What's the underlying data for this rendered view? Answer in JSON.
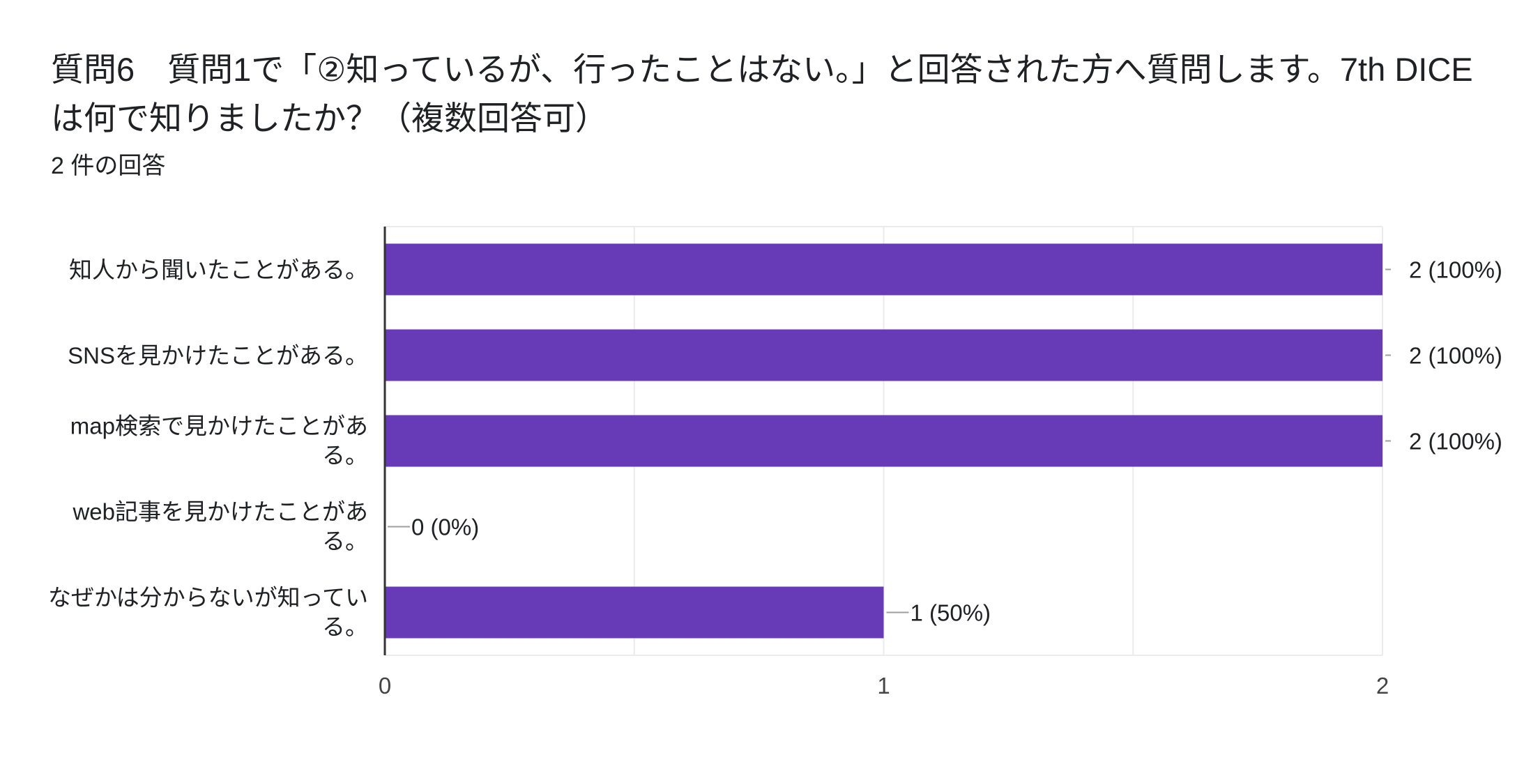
{
  "question": {
    "title": "質問6　質問1で「②知っているが、行ったことはない。」と回答された方へ質問します。7th DICEは何で知りましたか？（複数回答可）",
    "responses": "2 件の回答"
  },
  "colors": {
    "bar": "#673ab7",
    "axis": "#333333",
    "grid": "#ebebeb",
    "leader": "#9e9e9e",
    "text": "#202124"
  },
  "chart_data": {
    "type": "bar",
    "orientation": "horizontal",
    "categories": [
      "知人から聞いたことがある。",
      "SNSを見かけたことがある。",
      "map検索で見かけたことがある。",
      "web記事を見かけたことがある。",
      "なぜかは分からないが知っている。"
    ],
    "values": [
      2,
      2,
      2,
      0,
      1
    ],
    "data_labels": [
      "2 (100%)",
      "2 (100%)",
      "2 (100%)",
      "0 (0%)",
      "1 (50%)"
    ],
    "xlim": [
      0,
      2
    ],
    "xticks": [
      0,
      1,
      2
    ],
    "grid": true,
    "legend": "none"
  }
}
